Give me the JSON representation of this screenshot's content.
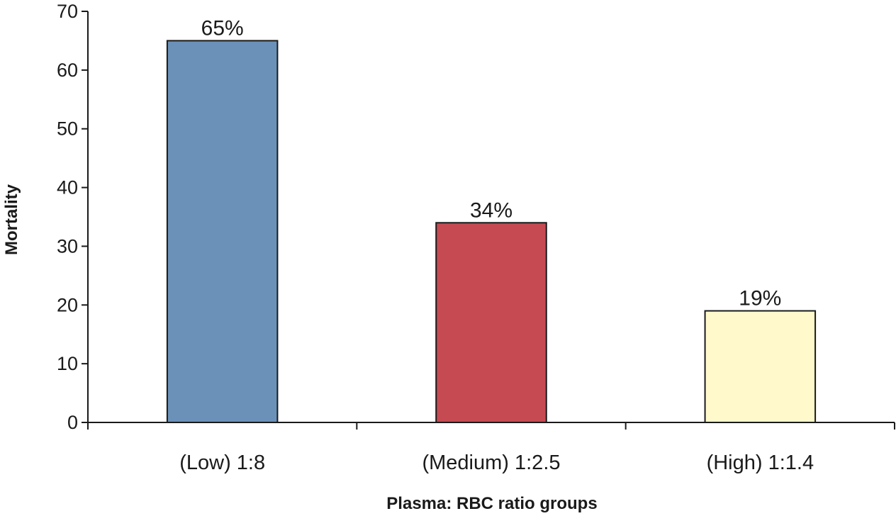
{
  "chart_data": {
    "type": "bar",
    "title": "",
    "xlabel": "Plasma: RBC ratio groups",
    "ylabel": "Mortality",
    "ylim": [
      0,
      70
    ],
    "yticks": [
      0,
      10,
      20,
      30,
      40,
      50,
      60,
      70
    ],
    "grid": false,
    "legend": "none",
    "categories": [
      "(Low) 1:8",
      "(Medium) 1:2.5",
      "(High) 1:1.4"
    ],
    "values": [
      65,
      34,
      19
    ],
    "data_labels": [
      "65%",
      "34%",
      "19%"
    ],
    "colors": [
      "#6b91b8",
      "#c64a52",
      "#fff9cc"
    ],
    "edge_color": "#1a1a1a",
    "axis_color": "#1a1a1a"
  }
}
